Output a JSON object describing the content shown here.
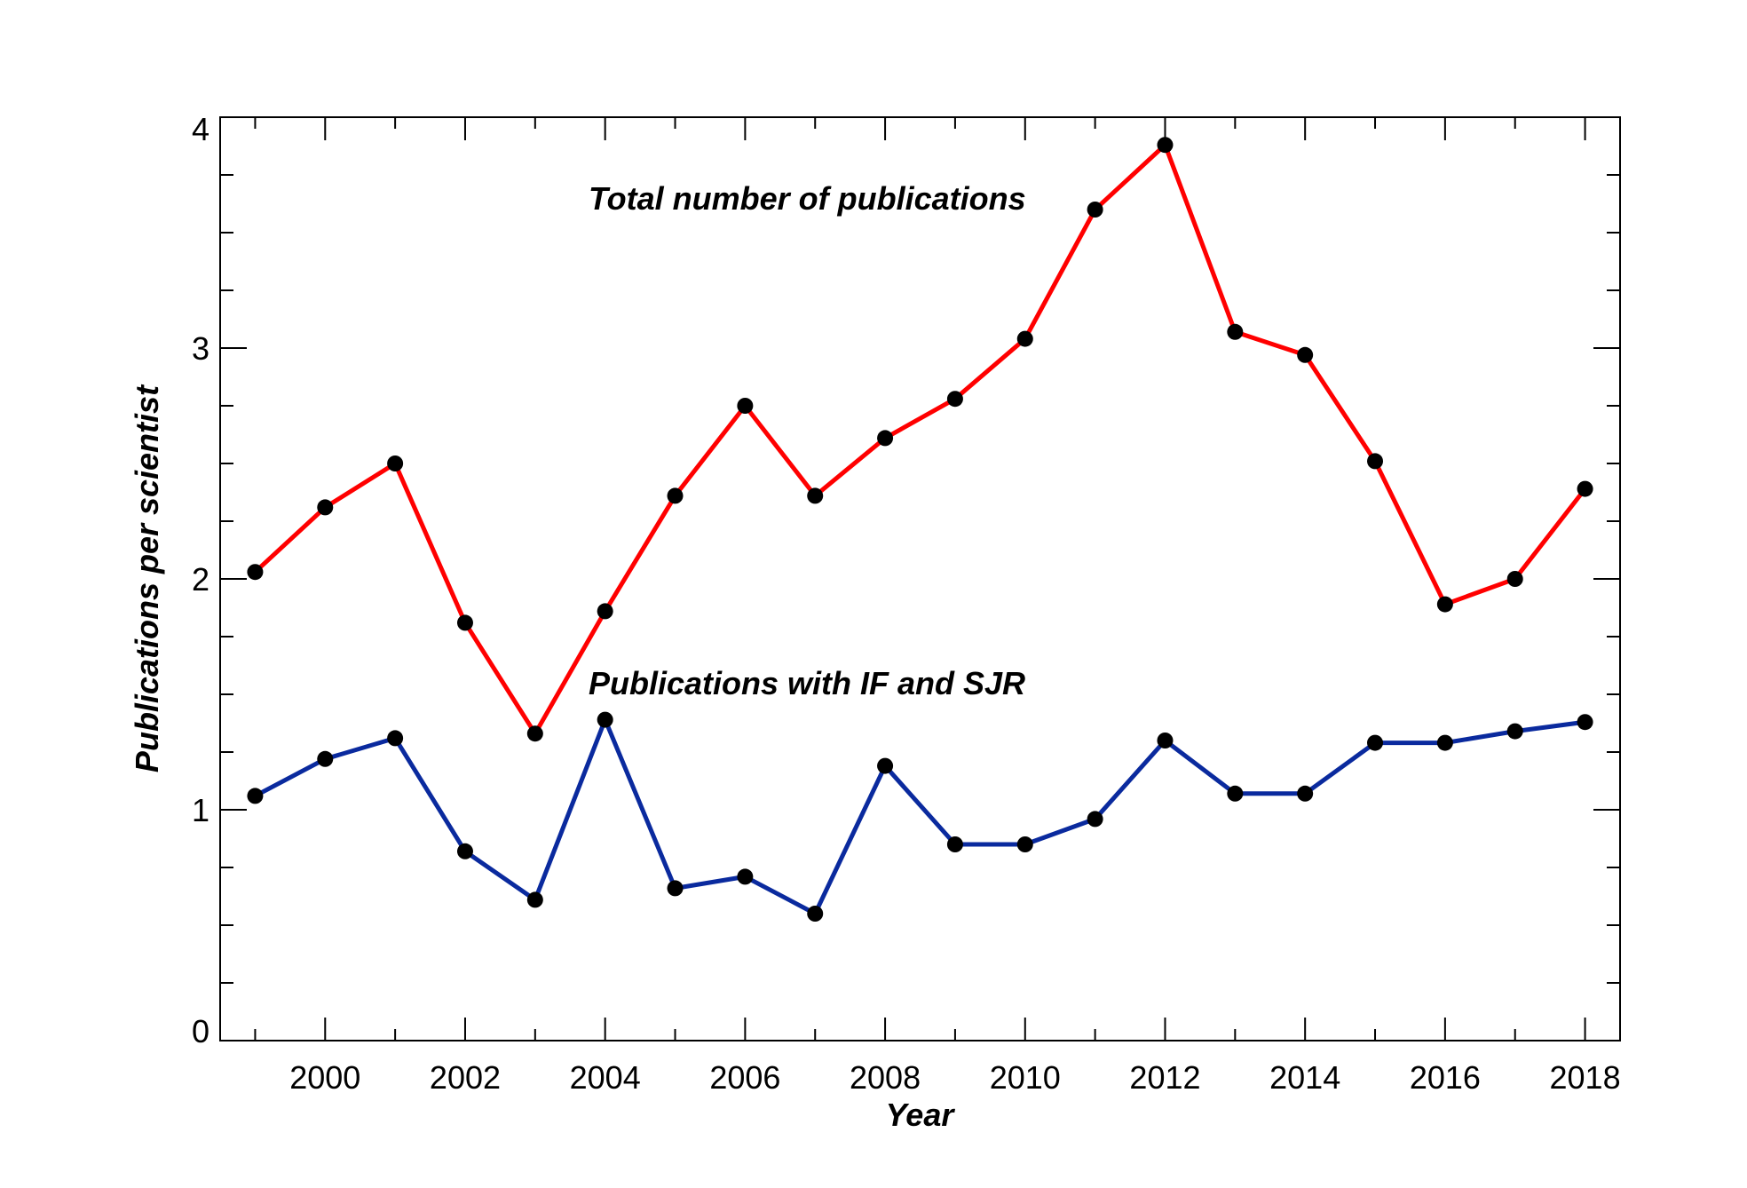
{
  "chart_data": {
    "type": "line",
    "title": "",
    "xlabel": "Year",
    "ylabel": "Publications per scientist",
    "xlim": [
      1998.5,
      2018.5
    ],
    "ylim": [
      0,
      4
    ],
    "x": [
      1999,
      2000,
      2001,
      2002,
      2003,
      2004,
      2005,
      2006,
      2007,
      2008,
      2009,
      2010,
      2011,
      2012,
      2013,
      2014,
      2015,
      2016,
      2017,
      2018
    ],
    "xticks": [
      "2000",
      "2002",
      "2004",
      "2006",
      "2008",
      "2010",
      "2012",
      "2014",
      "2016",
      "2018"
    ],
    "yticks": [
      "0",
      "1",
      "2",
      "3",
      "4"
    ],
    "grid": false,
    "series": [
      {
        "name": "Total number of publications",
        "color": "#ff0000",
        "values": [
          2.03,
          2.31,
          2.5,
          1.81,
          1.33,
          1.86,
          2.36,
          2.75,
          2.36,
          2.61,
          2.78,
          3.04,
          3.6,
          3.88,
          3.07,
          2.97,
          2.51,
          1.89,
          2.0,
          2.39
        ]
      },
      {
        "name": "Publications with IF and SJR",
        "color": "#0a2a9e",
        "values": [
          1.06,
          1.22,
          1.31,
          0.82,
          0.61,
          1.39,
          0.66,
          0.71,
          0.55,
          1.19,
          0.85,
          0.85,
          0.96,
          1.3,
          1.07,
          1.07,
          1.29,
          1.29,
          1.34,
          1.38
        ]
      }
    ]
  }
}
